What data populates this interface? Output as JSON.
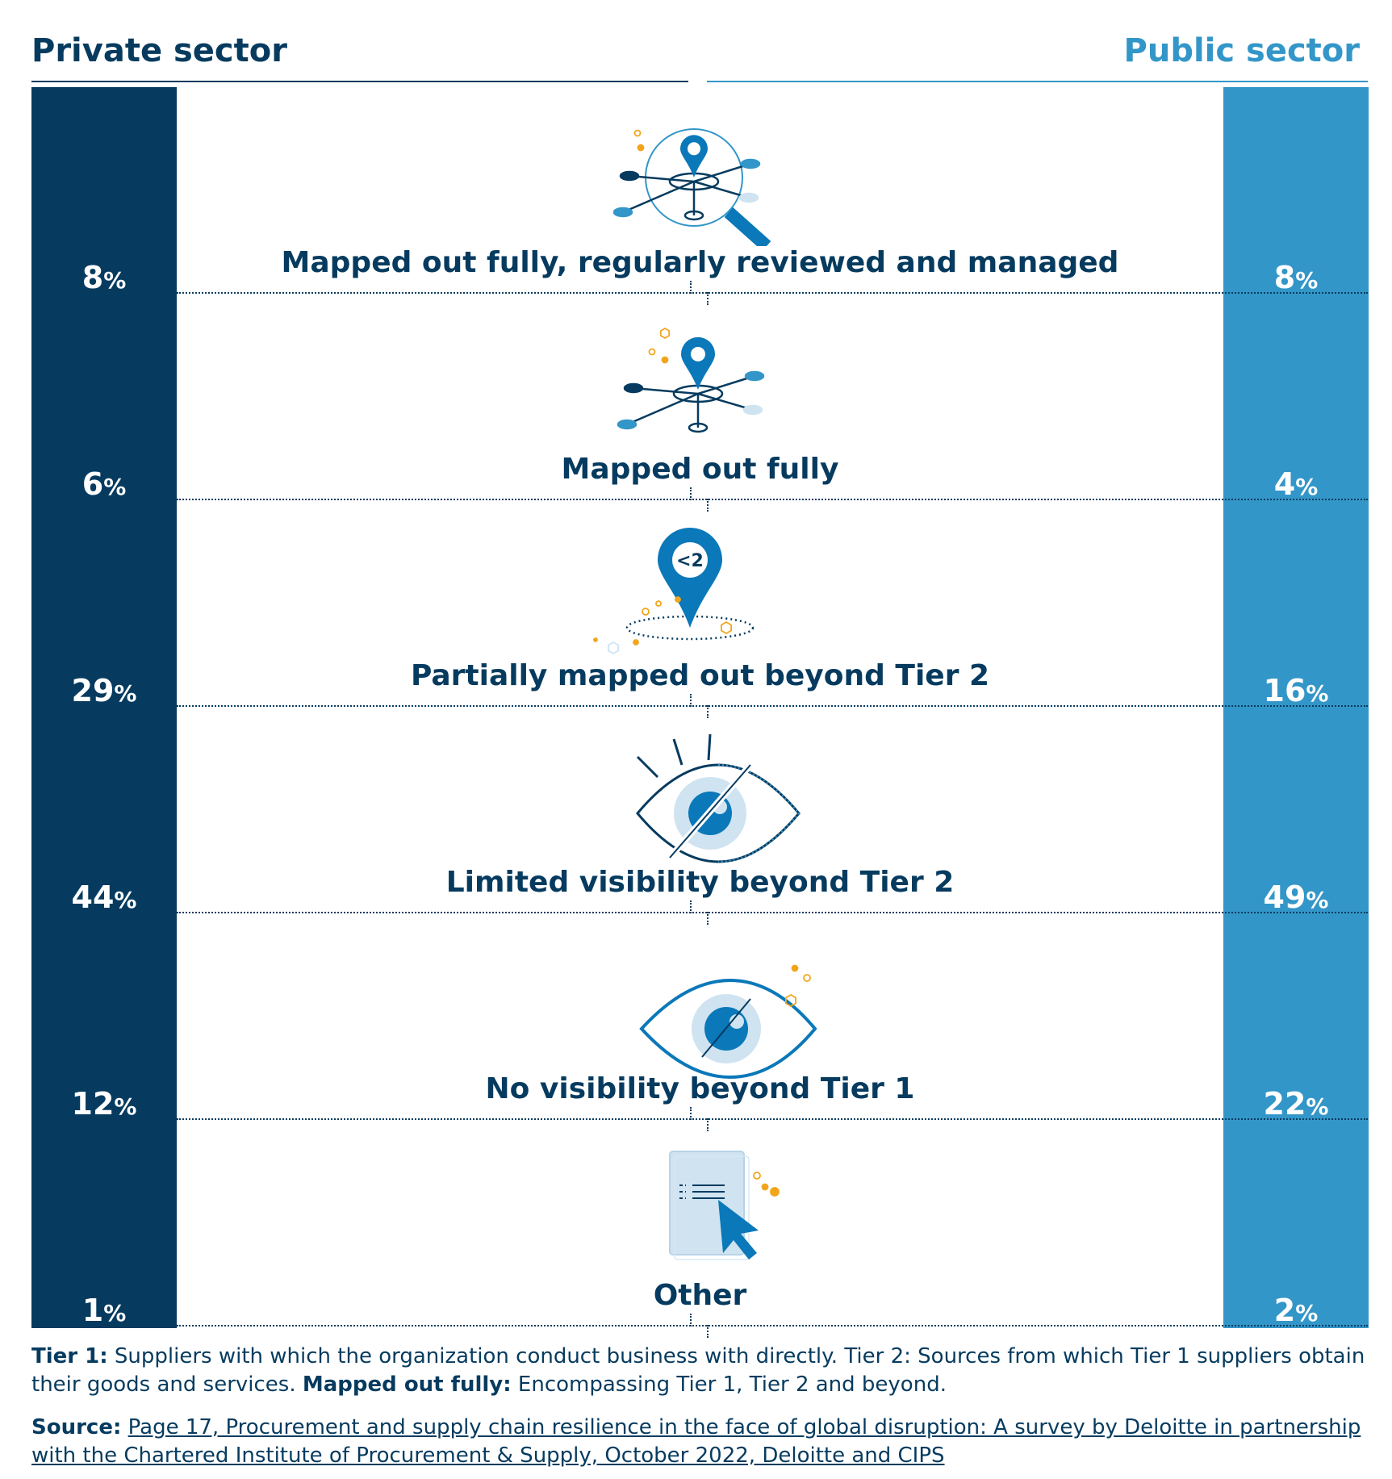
{
  "headers": {
    "left": "Private sector",
    "right": "Public sector"
  },
  "percent_symbol": "%",
  "colors": {
    "private": "#063b5f",
    "public": "#3396c8",
    "accent_blue": "#0a78b9",
    "light_blue": "#cfe3f1",
    "orange": "#f2a51c"
  },
  "chart_data": {
    "type": "table",
    "series": [
      {
        "name": "Private sector",
        "values": [
          8,
          6,
          29,
          44,
          12,
          1
        ]
      },
      {
        "name": "Public sector",
        "values": [
          8,
          4,
          16,
          49,
          22,
          2
        ]
      }
    ],
    "categories": [
      "Mapped out fully, regularly reviewed and managed",
      "Mapped out fully",
      "Partially mapped out beyond Tier 2",
      "Limited visibility beyond Tier 2",
      "No visibility beyond Tier 1",
      "Other"
    ],
    "units": "%"
  },
  "rows": [
    {
      "icon": "map-pin-network-magnifier-icon"
    },
    {
      "icon": "map-pin-network-icon"
    },
    {
      "icon": "map-pin-less-than-two-icon",
      "pin_text": "<2"
    },
    {
      "icon": "half-dotted-eye-icon"
    },
    {
      "icon": "crossed-eye-icon"
    },
    {
      "icon": "document-cursor-icon"
    }
  ],
  "footnote": {
    "tier1_label": "Tier 1:",
    "tier1_text": " Suppliers with which the organization conduct business with directly. Tier 2: Sources from which Tier 1 suppliers obtain their goods and services. ",
    "mapped_label": "Mapped out fully:",
    "mapped_text": " Encompassing Tier 1, Tier 2 and beyond."
  },
  "source": {
    "label": "Source:",
    "text": "Page 17, Procurement and supply chain resilience in the face of global disruption: A survey by Deloitte in partnership with the Chartered Institute of Procurement & Supply, October 2022, Deloitte and CIPS"
  }
}
